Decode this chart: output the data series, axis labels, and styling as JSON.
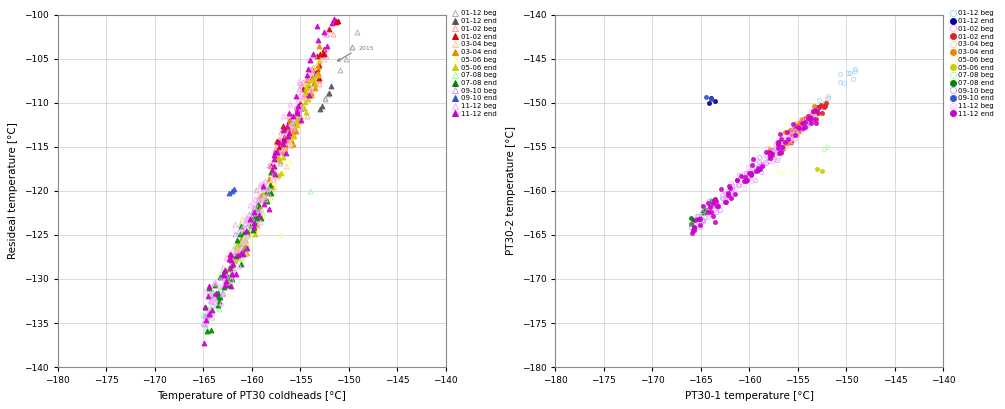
{
  "plot1": {
    "xlabel": "Temperature of PT30 coldheads [°C]",
    "ylabel": "Resideal temperature [°C]",
    "xlim": [
      -180,
      -140
    ],
    "ylim": [
      -140,
      -100
    ],
    "xticks": [
      -180,
      -175,
      -170,
      -165,
      -160,
      -155,
      -150,
      -145,
      -140
    ],
    "yticks": [
      -140,
      -135,
      -130,
      -125,
      -120,
      -115,
      -110,
      -105,
      -100
    ]
  },
  "plot2": {
    "xlabel": "PT30-1 temperature [°C]",
    "ylabel": "PT30-2 temperature [°C]",
    "xlim": [
      -180,
      -140
    ],
    "ylim": [
      -180,
      -140
    ],
    "xticks": [
      -180,
      -175,
      -170,
      -165,
      -160,
      -155,
      -150,
      -145,
      -140
    ],
    "yticks": [
      -180,
      -175,
      -170,
      -165,
      -160,
      -155,
      -150,
      -145,
      -140
    ]
  },
  "labels": [
    "01-12 beg",
    "01-12 end",
    "01-02 beg",
    "01-02 end",
    "03-04 beg",
    "03-04 end",
    "05-06 beg",
    "05-06 end",
    "07-08 beg",
    "07-08 end",
    "09-10 beg",
    "09-10 end",
    "11-12 beg",
    "11-12 end"
  ],
  "colors_p1": [
    "#AAAAAA",
    "#555555",
    "#FF9999",
    "#DD0000",
    "#FFCC88",
    "#EE8800",
    "#FFFF99",
    "#CCCC00",
    "#99FF99",
    "#008800",
    "#CC99FF",
    "#3355CC",
    "#FFAAFF",
    "#CC00CC"
  ],
  "colors_p2": [
    "#88CCFF",
    "#000099",
    "#FFAACC",
    "#DD2222",
    "#FFCC99",
    "#EE8800",
    "#FFFF99",
    "#CCCC00",
    "#88FF88",
    "#008800",
    "#BB88FF",
    "#3355CC",
    "#FFAAFF",
    "#CC00CC"
  ],
  "filled": [
    false,
    true,
    false,
    true,
    false,
    true,
    false,
    true,
    false,
    true,
    false,
    true,
    false,
    true
  ]
}
